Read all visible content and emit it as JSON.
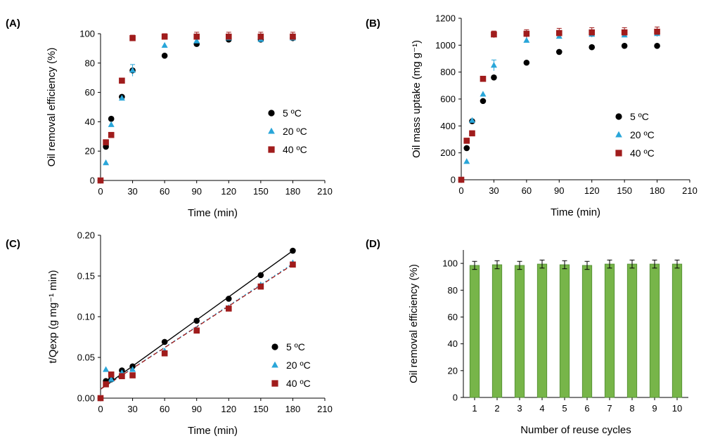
{
  "colors": {
    "s5": "#000000",
    "s20": "#29a6d9",
    "s40": "#a01c1c",
    "bar": "#77b549",
    "bar_edge": "#4e8a2f"
  },
  "chart_data": [
    {
      "panel": "(A)",
      "type": "scatter",
      "xlabel": "Time (min)",
      "ylabel": "Oil removal efficiency (%)",
      "xlim": [
        0,
        210
      ],
      "ylim": [
        0,
        100
      ],
      "xticks": [
        "0",
        "30",
        "60",
        "90",
        "120",
        "150",
        "180",
        "210"
      ],
      "yticks": [
        "0",
        "20",
        "40",
        "60",
        "80",
        "100"
      ],
      "legend_position": "right-middle",
      "series": [
        {
          "name": "5 ºC",
          "marker": "circle",
          "x": [
            0,
            5,
            10,
            20,
            30,
            60,
            90,
            120,
            150,
            180
          ],
          "y": [
            0,
            23,
            42,
            57,
            75,
            85,
            93,
            96,
            96,
            97
          ]
        },
        {
          "name": "20 ºC",
          "marker": "triangle",
          "x": [
            0,
            5,
            10,
            20,
            30,
            60,
            90,
            120,
            150,
            180
          ],
          "y": [
            0,
            12,
            38,
            56,
            75,
            92,
            95,
            97,
            96,
            97
          ],
          "yerr": [
            0,
            0,
            0,
            0,
            4,
            0,
            0,
            0,
            0,
            0
          ]
        },
        {
          "name": "40 ºC",
          "marker": "square",
          "x": [
            0,
            5,
            10,
            20,
            30,
            60,
            90,
            120,
            150,
            180
          ],
          "y": [
            0,
            26,
            31,
            68,
            97,
            98,
            98,
            98,
            98,
            98
          ],
          "yerr": [
            0,
            0,
            0,
            0,
            2,
            2,
            3,
            3,
            3,
            3
          ]
        }
      ]
    },
    {
      "panel": "(B)",
      "type": "scatter",
      "xlabel": "Time (min)",
      "ylabel": "Oil mass uptake (mg g⁻¹)",
      "xlim": [
        0,
        210
      ],
      "ylim": [
        0,
        1200
      ],
      "xticks": [
        "0",
        "30",
        "60",
        "90",
        "120",
        "150",
        "180",
        "210"
      ],
      "yticks": [
        "0",
        "200",
        "400",
        "600",
        "800",
        "1000",
        "1200"
      ],
      "legend_position": "lower-right",
      "series": [
        {
          "name": "5 ºC",
          "marker": "circle",
          "x": [
            0,
            5,
            10,
            20,
            30,
            60,
            90,
            120,
            150,
            180
          ],
          "y": [
            0,
            235,
            435,
            585,
            760,
            870,
            950,
            985,
            995,
            995
          ]
        },
        {
          "name": "20 ºC",
          "marker": "triangle",
          "x": [
            0,
            5,
            10,
            20,
            30,
            60,
            90,
            120,
            150,
            180
          ],
          "y": [
            0,
            135,
            440,
            635,
            850,
            1035,
            1065,
            1080,
            1075,
            1085
          ],
          "yerr": [
            0,
            0,
            0,
            0,
            40,
            0,
            0,
            0,
            0,
            0
          ]
        },
        {
          "name": "40 ºC",
          "marker": "square",
          "x": [
            0,
            5,
            10,
            20,
            30,
            60,
            90,
            120,
            150,
            180
          ],
          "y": [
            0,
            290,
            345,
            750,
            1080,
            1085,
            1090,
            1095,
            1095,
            1100
          ],
          "yerr": [
            0,
            0,
            0,
            0,
            25,
            30,
            35,
            35,
            35,
            35
          ]
        }
      ]
    },
    {
      "panel": "(C)",
      "type": "scatter",
      "xlabel": "Time (min)",
      "ylabel": "t/Qexp (g mg⁻¹ min)",
      "xlim": [
        0,
        210
      ],
      "ylim": [
        0,
        0.2
      ],
      "xticks": [
        "0",
        "30",
        "60",
        "90",
        "120",
        "150",
        "180",
        "210"
      ],
      "yticks": [
        "0.00",
        "0.05",
        "0.10",
        "0.15",
        "0.20"
      ],
      "legend_position": "lower-right",
      "series": [
        {
          "name": "5 ºC",
          "marker": "circle",
          "x": [
            0,
            5,
            10,
            20,
            30,
            60,
            90,
            120,
            150,
            180
          ],
          "y": [
            0,
            0.021,
            0.023,
            0.034,
            0.039,
            0.069,
            0.095,
            0.122,
            0.151,
            0.181
          ],
          "fit": [
            0.011,
            0.181
          ],
          "fit_dash": "solid"
        },
        {
          "name": "20 ºC",
          "marker": "triangle",
          "x": [
            0,
            5,
            10,
            20,
            30,
            60,
            90,
            120,
            150,
            180
          ],
          "y": [
            0,
            0.035,
            0.023,
            0.031,
            0.035,
            0.058,
            0.084,
            0.111,
            0.139,
            0.166
          ],
          "fit": [
            0.011,
            0.165
          ],
          "fit_dash": "dotted"
        },
        {
          "name": "40 ºC",
          "marker": "square",
          "x": [
            0,
            5,
            10,
            20,
            30,
            60,
            90,
            120,
            150,
            180
          ],
          "y": [
            0,
            0.017,
            0.029,
            0.027,
            0.028,
            0.055,
            0.083,
            0.11,
            0.137,
            0.164
          ],
          "fit": [
            0.011,
            0.164
          ],
          "fit_dash": "dashed"
        }
      ]
    },
    {
      "panel": "(D)",
      "type": "bar",
      "xlabel": "Number of reuse cycles",
      "ylabel": "Oil removal efficiency (%)",
      "ylim": [
        0,
        110
      ],
      "yticks": [
        "0",
        "20",
        "40",
        "60",
        "80",
        "100"
      ],
      "categories": [
        "1",
        "2",
        "3",
        "4",
        "5",
        "6",
        "7",
        "8",
        "9",
        "10"
      ],
      "values": [
        98.5,
        99,
        98.5,
        99.5,
        99,
        98.5,
        99.5,
        99.5,
        99.5,
        99.5
      ],
      "yerr": [
        3,
        3,
        3,
        3,
        3,
        3,
        3,
        3,
        3,
        3
      ]
    }
  ]
}
